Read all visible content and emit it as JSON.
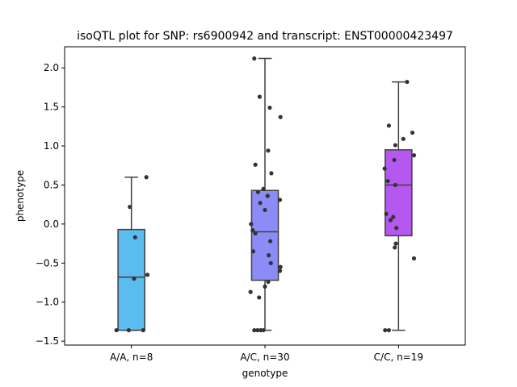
{
  "chart_data": {
    "type": "box",
    "title": "isoQTL plot for SNP: rs6900942 and transcript: ENST00000423497",
    "xlabel": "genotype",
    "ylabel": "phenotype",
    "ylim": [
      -1.55,
      2.27
    ],
    "yticks": [
      "−1.5",
      "−1.0",
      "−0.5",
      "0.0",
      "0.5",
      "1.0",
      "1.5",
      "2.0"
    ],
    "ytick_values": [
      -1.5,
      -1.0,
      -0.5,
      0.0,
      0.5,
      1.0,
      1.5,
      2.0
    ],
    "grid": false,
    "categories": [
      "A/A, n=8",
      "A/C, n=30",
      "C/C, n=19"
    ],
    "series": [
      {
        "category": "A/A, n=8",
        "color": "#5bbcef",
        "whisker_low": -1.36,
        "q1": -1.36,
        "median": -0.68,
        "q3": -0.07,
        "whisker_high": 0.6,
        "points": [
          [
            -0.28,
            -1.36
          ],
          [
            -0.05,
            -1.36
          ],
          [
            0.22,
            -1.36
          ],
          [
            0.3,
            -0.65
          ],
          [
            0.05,
            -0.7
          ],
          [
            0.07,
            -0.17
          ],
          [
            -0.03,
            0.22
          ],
          [
            0.28,
            0.6
          ]
        ]
      },
      {
        "category": "A/C, n=30",
        "color": "#8c8cf7",
        "whisker_low": -1.36,
        "q1": -0.72,
        "median": -0.1,
        "q3": 0.43,
        "whisker_high": 2.12,
        "points": [
          [
            -0.2,
            2.12
          ],
          [
            -0.1,
            1.63
          ],
          [
            0.09,
            1.49
          ],
          [
            0.29,
            1.37
          ],
          [
            0.06,
            0.94
          ],
          [
            -0.18,
            0.76
          ],
          [
            0.12,
            0.65
          ],
          [
            -0.03,
            0.45
          ],
          [
            -0.13,
            0.41
          ],
          [
            0.05,
            0.36
          ],
          [
            0.28,
            0.31
          ],
          [
            -0.09,
            0.27
          ],
          [
            0.0,
            0.18
          ],
          [
            -0.26,
            0.0
          ],
          [
            -0.23,
            -0.08
          ],
          [
            -0.18,
            -0.12
          ],
          [
            0.1,
            -0.22
          ],
          [
            -0.22,
            -0.35
          ],
          [
            0.07,
            -0.4
          ],
          [
            0.11,
            -0.5
          ],
          [
            0.29,
            -0.55
          ],
          [
            0.28,
            -0.6
          ],
          [
            0.06,
            -0.74
          ],
          [
            0.0,
            -0.8
          ],
          [
            -0.27,
            -0.87
          ],
          [
            -0.11,
            -0.94
          ],
          [
            -0.2,
            -1.36
          ],
          [
            -0.14,
            -1.36
          ],
          [
            -0.08,
            -1.36
          ],
          [
            -0.03,
            -1.36
          ]
        ]
      },
      {
        "category": "C/C, n=19",
        "color": "#b558ef",
        "whisker_low": -1.36,
        "q1": -0.15,
        "median": 0.5,
        "q3": 0.95,
        "whisker_high": 1.82,
        "points": [
          [
            0.16,
            1.82
          ],
          [
            -0.18,
            1.26
          ],
          [
            0.26,
            1.17
          ],
          [
            0.09,
            1.09
          ],
          [
            -0.06,
            1.01
          ],
          [
            0.29,
            0.88
          ],
          [
            -0.08,
            0.82
          ],
          [
            -0.26,
            0.71
          ],
          [
            -0.2,
            0.55
          ],
          [
            -0.06,
            0.5
          ],
          [
            -0.23,
            0.13
          ],
          [
            -0.1,
            0.09
          ],
          [
            -0.15,
            0.05
          ],
          [
            -0.04,
            -0.05
          ],
          [
            -0.05,
            -0.25
          ],
          [
            -0.07,
            -0.3
          ],
          [
            0.29,
            -0.44
          ],
          [
            -0.25,
            -1.36
          ],
          [
            -0.18,
            -1.36
          ]
        ]
      }
    ]
  }
}
